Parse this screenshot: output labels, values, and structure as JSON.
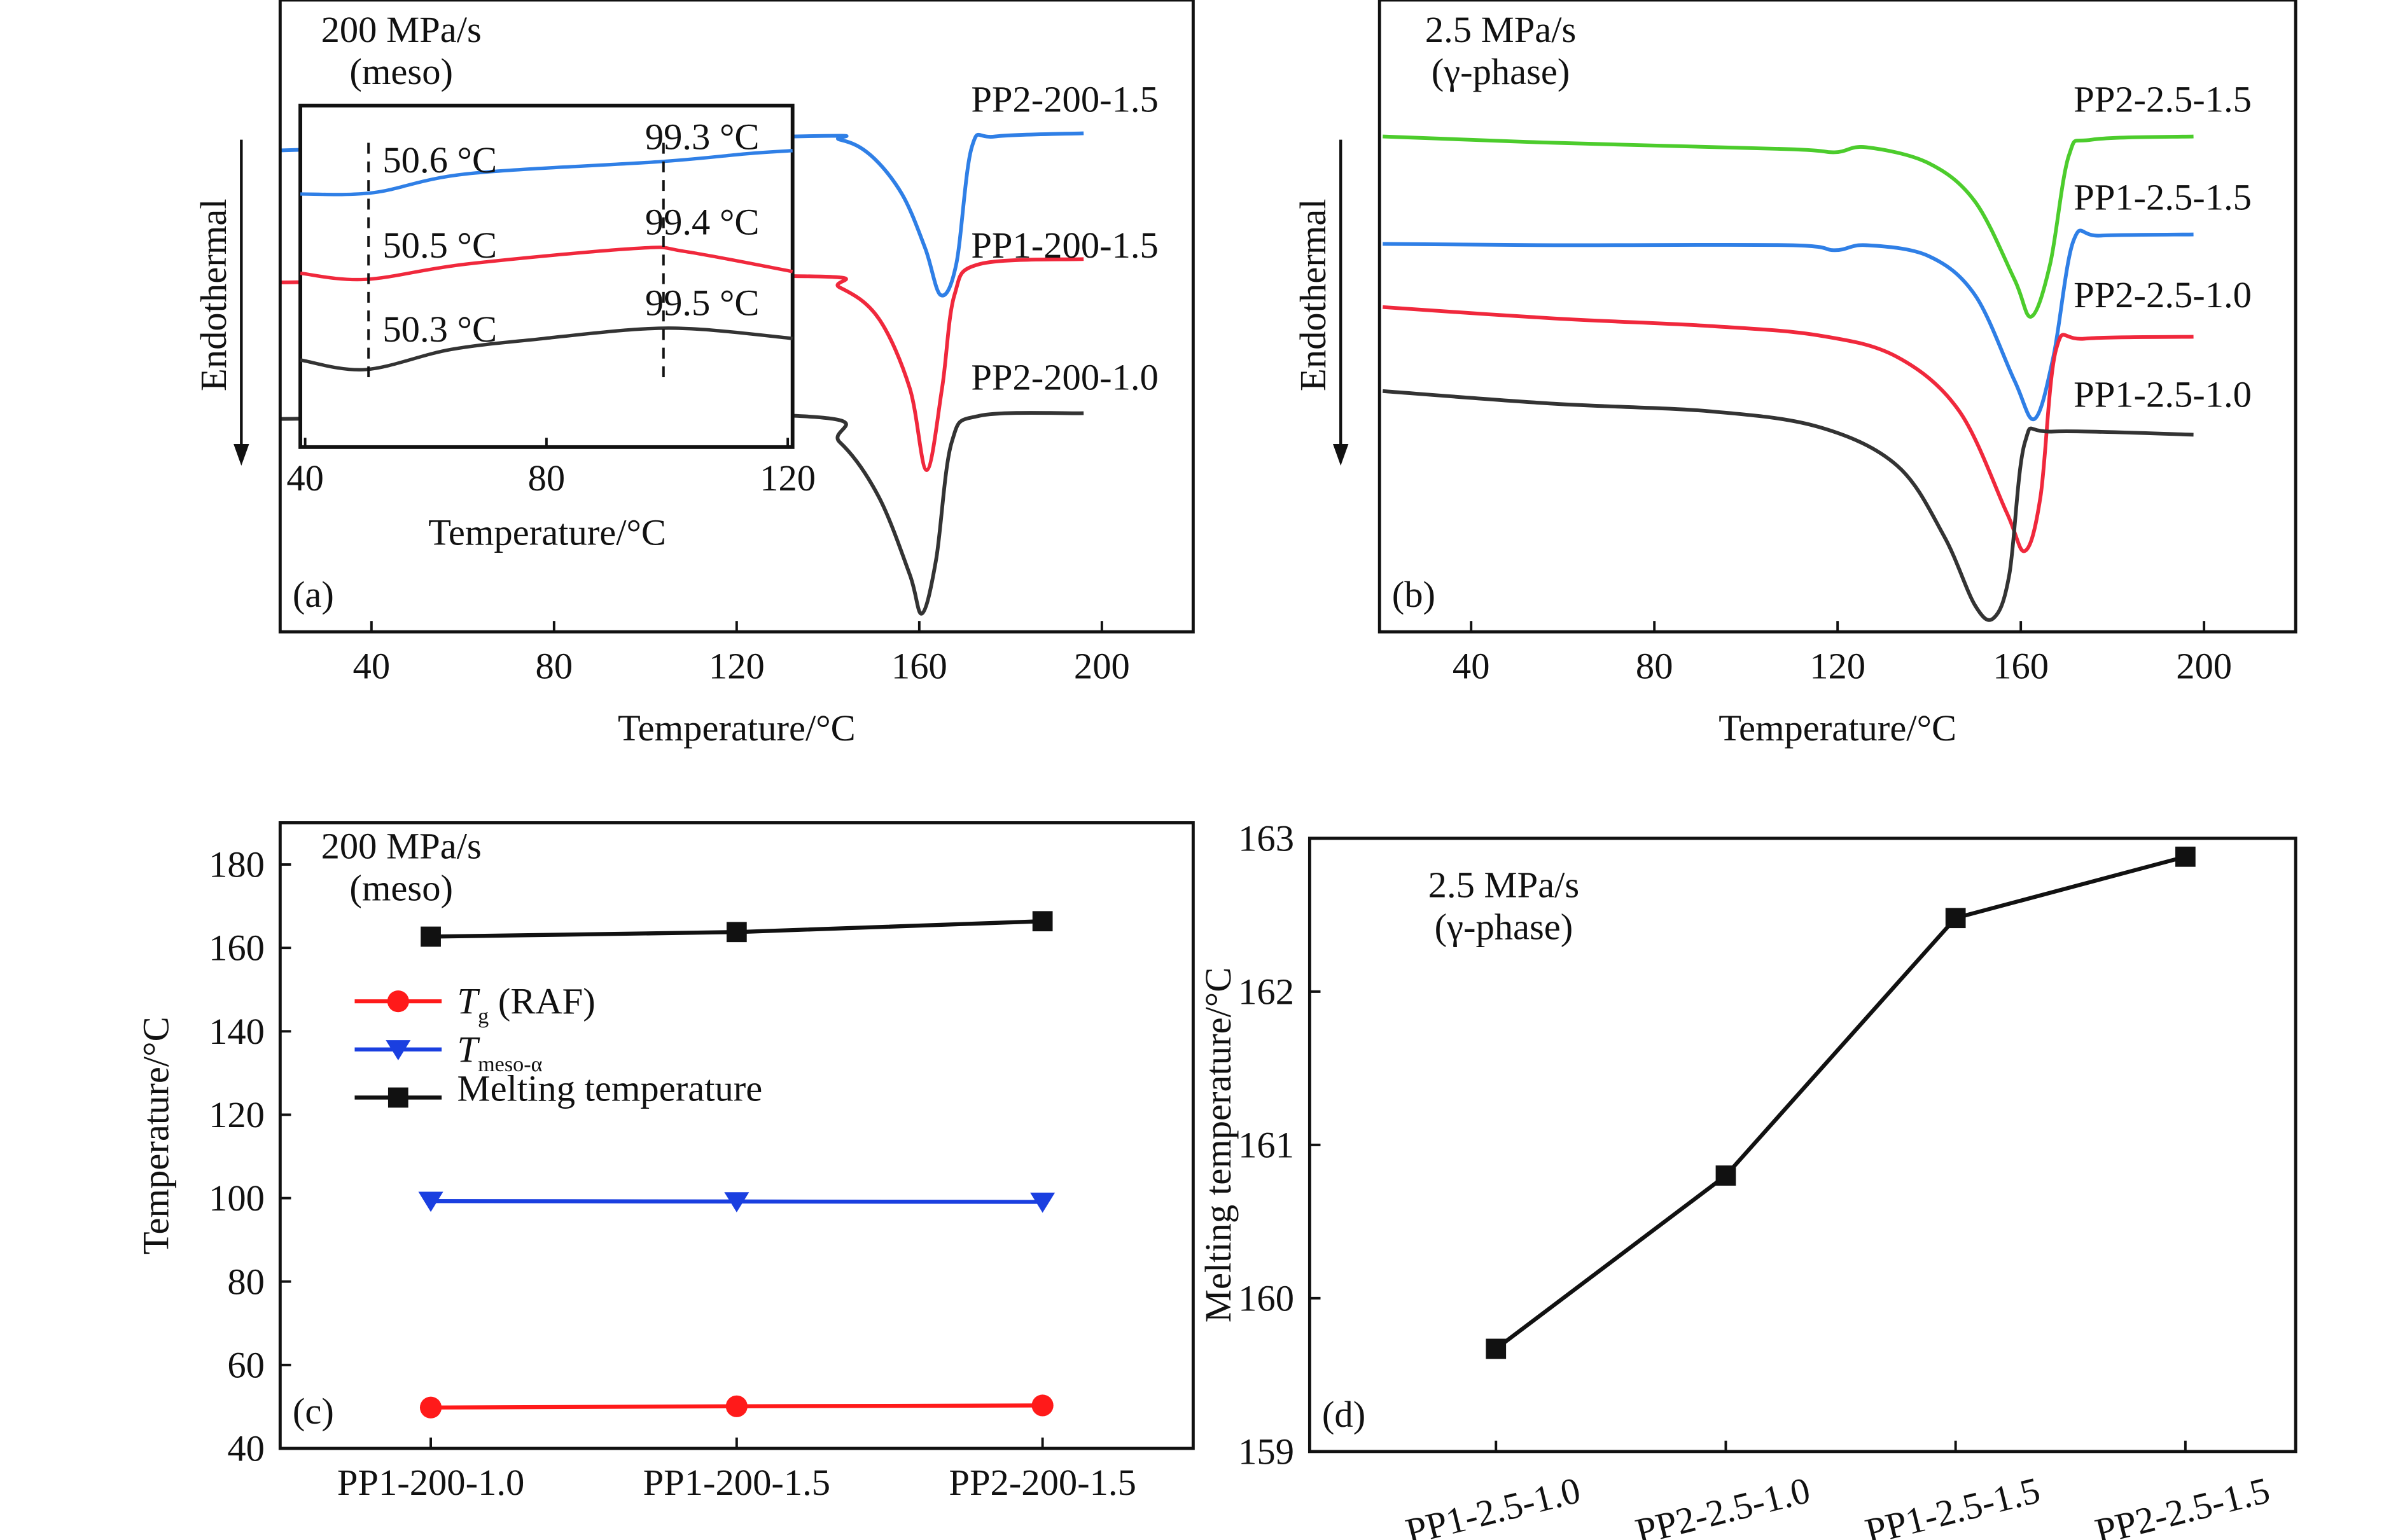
{
  "chart_data": [
    {
      "panel": "(a)",
      "type": "line",
      "title_lines": [
        "200 MPa/s",
        "(meso)"
      ],
      "xlabel": "Temperature/°C",
      "ylabel": "Endothermal",
      "xlim": [
        20,
        220
      ],
      "xticks": [
        40,
        80,
        120,
        160,
        200
      ],
      "ylim": [
        0,
        100
      ],
      "series": [
        {
          "name": "PP2-200-1.5",
          "color": "#2f7fe6",
          "points": [
            [
              20,
              76.2
            ],
            [
              132.3,
              78.4
            ],
            [
              142.6,
              77.9
            ],
            [
              149.4,
              75.4
            ],
            [
              156.2,
              69.3
            ],
            [
              161.3,
              60.7
            ],
            [
              164.7,
              53.3
            ],
            [
              168.1,
              58.2
            ],
            [
              171.5,
              76.7
            ],
            [
              176.6,
              78.4
            ],
            [
              196,
              78.9
            ]
          ]
        },
        {
          "name": "PP1-200-1.5",
          "color": "#f0283c",
          "points": [
            [
              20,
              55.3
            ],
            [
              132.3,
              56.3
            ],
            [
              142.6,
              54.5
            ],
            [
              151.1,
              49.6
            ],
            [
              157.9,
              38.6
            ],
            [
              161.6,
              25.6
            ],
            [
              165,
              38.6
            ],
            [
              167.7,
              53.3
            ],
            [
              173.2,
              58.2
            ],
            [
              196,
              59
            ]
          ]
        },
        {
          "name": "PP2-200-1.0",
          "color": "#333333",
          "points": [
            [
              20,
              33.7
            ],
            [
              132.3,
              34.2
            ],
            [
              142.6,
              30
            ],
            [
              151.1,
              21.4
            ],
            [
              157.9,
              9.1
            ],
            [
              160.6,
              2.9
            ],
            [
              163.7,
              11.5
            ],
            [
              167.1,
              30
            ],
            [
              173.2,
              34.2
            ],
            [
              196,
              34.6
            ]
          ]
        }
      ],
      "inset": {
        "xlabel": "Temperature/°C",
        "xlim": [
          39.2,
          120.8
        ],
        "xticks": [
          40,
          80,
          120
        ],
        "ylim": [
          0,
          100
        ],
        "series": [
          {
            "color": "#2f7fe6",
            "points": [
              [
                39.2,
                74.1
              ],
              [
                51.3,
                74.5
              ],
              [
                66.8,
                80
              ],
              [
                99,
                83.6
              ],
              [
                113.2,
                85.9
              ],
              [
                120.8,
                86.8
              ]
            ]
          },
          {
            "color": "#f0283c",
            "points": [
              [
                39.2,
                50.9
              ],
              [
                50,
                49.1
              ],
              [
                66.8,
                53.6
              ],
              [
                95,
                58.2
              ],
              [
                102.9,
                57.3
              ],
              [
                120.8,
                51.4
              ]
            ]
          },
          {
            "color": "#333333",
            "points": [
              [
                39.2,
                25.5
              ],
              [
                50,
                22.7
              ],
              [
                64.2,
                28.6
              ],
              [
                79.6,
                31.8
              ],
              [
                95,
                34.5
              ],
              [
                105.5,
                34.5
              ],
              [
                120.8,
                31.8
              ]
            ]
          }
        ],
        "dashed_lines_at": [
          50.5,
          99.4
        ],
        "annotations": [
          "50.6 °C",
          "99.3 °C",
          "50.5 °C",
          "99.4 °C",
          "50.3 °C",
          "99.5 °C"
        ]
      }
    },
    {
      "panel": "(b)",
      "type": "line",
      "title_lines": [
        "2.5 MPa/s",
        "(γ-phase)"
      ],
      "xlabel": "Temperature/°C",
      "ylabel": "Endothermal",
      "xlim": [
        20,
        220
      ],
      "xticks": [
        40,
        80,
        120,
        160,
        200
      ],
      "ylim": [
        0,
        100
      ],
      "series": [
        {
          "name": "PP2-2.5-1.5",
          "color": "#4ccc2c",
          "points": [
            [
              20.7,
              78.4
            ],
            [
              58.1,
              77.4
            ],
            [
              109.2,
              76.4
            ],
            [
              119.4,
              75.9
            ],
            [
              126.2,
              76.7
            ],
            [
              139.8,
              74.2
            ],
            [
              150,
              68.1
            ],
            [
              158.6,
              55.8
            ],
            [
              162.3,
              49.9
            ],
            [
              166.4,
              58.2
            ],
            [
              170.5,
              75.4
            ],
            [
              175.6,
              77.9
            ],
            [
              197.7,
              78.4
            ]
          ]
        },
        {
          "name": "PP1-2.5-1.5",
          "color": "#2f7fe6",
          "points": [
            [
              20.7,
              61.4
            ],
            [
              58.1,
              61.2
            ],
            [
              109.2,
              61.2
            ],
            [
              119.4,
              60.4
            ],
            [
              126.2,
              61.2
            ],
            [
              139.8,
              59.5
            ],
            [
              150,
              53.3
            ],
            [
              158.6,
              39.8
            ],
            [
              163,
              33.7
            ],
            [
              167.1,
              43.5
            ],
            [
              171.5,
              61.9
            ],
            [
              177.3,
              62.7
            ],
            [
              197.7,
              62.9
            ]
          ]
        },
        {
          "name": "PP2-2.5-1.0",
          "color": "#f0283c",
          "points": [
            [
              20.7,
              51.4
            ],
            [
              58.1,
              49.6
            ],
            [
              92.2,
              48.4
            ],
            [
              116,
              46.9
            ],
            [
              133,
              43.5
            ],
            [
              146.6,
              34.9
            ],
            [
              156.9,
              18.9
            ],
            [
              160.9,
              12.8
            ],
            [
              164.3,
              21.4
            ],
            [
              167.7,
              44.7
            ],
            [
              173.9,
              46.4
            ],
            [
              197.7,
              46.7
            ]
          ]
        },
        {
          "name": "PP1-2.5-1.0",
          "color": "#333333",
          "points": [
            [
              20.7,
              38.1
            ],
            [
              58.1,
              36.1
            ],
            [
              92.2,
              34.9
            ],
            [
              116,
              32.4
            ],
            [
              133,
              26.3
            ],
            [
              143.2,
              15.2
            ],
            [
              150,
              4.2
            ],
            [
              154.1,
              2.2
            ],
            [
              157.5,
              9.1
            ],
            [
              160.9,
              30
            ],
            [
              167.1,
              31.7
            ],
            [
              197.7,
              31.2
            ]
          ]
        }
      ]
    },
    {
      "panel": "(c)",
      "type": "line",
      "title_lines": [
        "200 MPa/s",
        "(meso)"
      ],
      "ylabel": "Temperature/°C",
      "ylim": [
        40,
        190
      ],
      "yticks": [
        40,
        60,
        80,
        100,
        120,
        140,
        160,
        180
      ],
      "categories": [
        "PP1-200-1.0",
        "PP1-200-1.5",
        "PP2-200-1.5"
      ],
      "legend_position": "upper-left",
      "series": [
        {
          "name": {
            "symbol": "T",
            "sub": "g",
            "rest": " (RAF)"
          },
          "color": "#ff1a1a",
          "marker": "circle",
          "values": [
            49.8,
            50.1,
            50.3
          ]
        },
        {
          "name": {
            "symbol": "T",
            "sub": "meso-α",
            "rest": ""
          },
          "color": "#1a3fe0",
          "marker": "triangle-down",
          "values": [
            99.3,
            99.2,
            99.1
          ]
        },
        {
          "name": {
            "symbol": "",
            "sub": "",
            "rest": "Melting temperature"
          },
          "color": "#111111",
          "marker": "square",
          "values": [
            162.7,
            163.8,
            166.4
          ]
        }
      ]
    },
    {
      "panel": "(d)",
      "type": "line",
      "title_lines": [
        "2.5 MPa/s",
        "(γ-phase)"
      ],
      "ylabel": "Melting temperature/°C",
      "ylim": [
        159,
        163
      ],
      "yticks": [
        159,
        160,
        161,
        162,
        163
      ],
      "categories": [
        "PP1-2.5-1.0",
        "PP2-2.5-1.0",
        "PP1-2.5-1.5",
        "PP2-2.5-1.5"
      ],
      "series": [
        {
          "color": "#111111",
          "marker": "square",
          "values": [
            159.67,
            160.8,
            162.48,
            162.88
          ]
        }
      ]
    }
  ]
}
